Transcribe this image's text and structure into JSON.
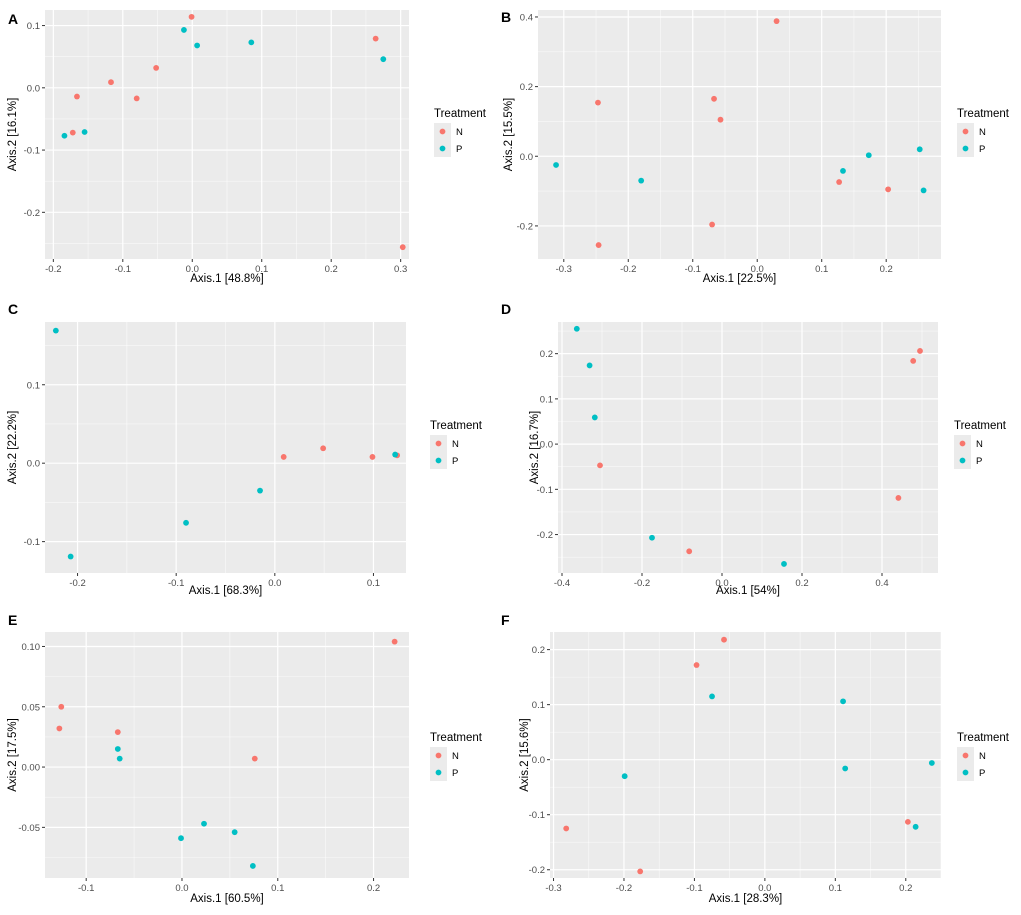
{
  "colors": {
    "N": "#F8766D",
    "P": "#00BFC4",
    "panel_bg": "#EBEBEB",
    "grid_major": "#FFFFFF"
  },
  "chart_data": [
    {
      "panel": "A",
      "type": "scatter",
      "xlabel": "Axis.1   [48.8%]",
      "ylabel": "Axis.2   [16.1%]",
      "xlim": [
        -0.212,
        0.312
      ],
      "ylim": [
        -0.275,
        0.125
      ],
      "xticks": [
        -0.2,
        -0.1,
        0.0,
        0.1,
        0.2,
        0.3
      ],
      "xtick_labels": [
        "-0.2",
        "-0.1",
        "0.0",
        "0.1",
        "0.2",
        "0.3"
      ],
      "yticks": [
        -0.2,
        -0.1,
        0.0,
        0.1
      ],
      "ytick_labels": [
        "-0.2",
        "-0.1",
        "0.0",
        "0.1"
      ],
      "legend_title": "Treatment",
      "legend": [
        {
          "key": "N",
          "label": "N"
        },
        {
          "key": "P",
          "label": "P"
        }
      ],
      "series": [
        {
          "name": "N",
          "points": [
            [
              -0.001,
              0.114
            ],
            [
              -0.052,
              0.032
            ],
            [
              -0.117,
              0.009
            ],
            [
              -0.08,
              -0.017
            ],
            [
              -0.166,
              -0.014
            ],
            [
              -0.172,
              -0.072
            ],
            [
              0.264,
              0.079
            ],
            [
              0.303,
              -0.256
            ]
          ]
        },
        {
          "name": "P",
          "points": [
            [
              -0.012,
              0.093
            ],
            [
              0.007,
              0.068
            ],
            [
              0.085,
              0.073
            ],
            [
              0.275,
              0.046
            ],
            [
              -0.184,
              -0.077
            ],
            [
              -0.155,
              -0.071
            ]
          ]
        }
      ]
    },
    {
      "panel": "B",
      "type": "scatter",
      "xlabel": "Axis.1   [22.5%]",
      "ylabel": "Axis.2   [15.5%]",
      "xlim": [
        -0.34,
        0.285
      ],
      "ylim": [
        -0.295,
        0.42
      ],
      "xticks": [
        -0.3,
        -0.2,
        -0.1,
        0.0,
        0.1,
        0.2
      ],
      "xtick_labels": [
        "-0.3",
        "-0.2",
        "-0.1",
        "0.0",
        "0.1",
        "0.2"
      ],
      "yticks": [
        -0.2,
        0.0,
        0.2,
        0.4
      ],
      "ytick_labels": [
        "-0.2",
        "0.0",
        "0.2",
        "0.4"
      ],
      "legend_title": "Treatment",
      "legend": [
        {
          "key": "N",
          "label": "N"
        },
        {
          "key": "P",
          "label": "P"
        }
      ],
      "series": [
        {
          "name": "N",
          "points": [
            [
              0.03,
              0.388
            ],
            [
              -0.247,
              0.154
            ],
            [
              -0.067,
              0.165
            ],
            [
              -0.057,
              0.105
            ],
            [
              0.127,
              -0.074
            ],
            [
              0.203,
              -0.095
            ],
            [
              -0.07,
              -0.196
            ],
            [
              -0.246,
              -0.255
            ]
          ]
        },
        {
          "name": "P",
          "points": [
            [
              -0.312,
              -0.025
            ],
            [
              -0.18,
              -0.07
            ],
            [
              0.133,
              -0.042
            ],
            [
              0.173,
              0.003
            ],
            [
              0.252,
              0.02
            ],
            [
              0.258,
              -0.098
            ]
          ]
        }
      ]
    },
    {
      "panel": "C",
      "type": "scatter",
      "xlabel": "Axis.1   [68.3%]",
      "ylabel": "Axis.2   [22.2%]",
      "xlim": [
        -0.233,
        0.133
      ],
      "ylim": [
        -0.14,
        0.18
      ],
      "xticks": [
        -0.2,
        -0.1,
        0.0,
        0.1
      ],
      "xtick_labels": [
        "-0.2",
        "-0.1",
        "0.0",
        "0.1"
      ],
      "yticks": [
        -0.1,
        0.0,
        0.1
      ],
      "ytick_labels": [
        "-0.1",
        "0.0",
        "0.1"
      ],
      "legend_title": "Treatment",
      "legend": [
        {
          "key": "N",
          "label": "N"
        },
        {
          "key": "P",
          "label": "P"
        }
      ],
      "series": [
        {
          "name": "N",
          "points": [
            [
              0.009,
              0.008
            ],
            [
              0.049,
              0.019
            ],
            [
              0.099,
              0.008
            ],
            [
              0.124,
              0.01
            ]
          ]
        },
        {
          "name": "P",
          "points": [
            [
              -0.222,
              0.169
            ],
            [
              -0.207,
              -0.119
            ],
            [
              -0.09,
              -0.076
            ],
            [
              -0.015,
              -0.035
            ],
            [
              0.122,
              0.011
            ]
          ]
        }
      ]
    },
    {
      "panel": "D",
      "type": "scatter",
      "xlabel": "Axis.1   [54%]",
      "ylabel": "Axis.2   [16.7%]",
      "xlim": [
        -0.41,
        0.54
      ],
      "ylim": [
        -0.285,
        0.27
      ],
      "xticks": [
        -0.4,
        -0.2,
        0.0,
        0.2,
        0.4
      ],
      "xtick_labels": [
        "-0.4",
        "-0.2",
        "0.0",
        "0.2",
        "0.4"
      ],
      "yticks": [
        -0.2,
        -0.1,
        0.0,
        0.1,
        0.2
      ],
      "ytick_labels": [
        "-0.2",
        "-0.1",
        "0.0",
        "0.1",
        "0.2"
      ],
      "legend_title": "Treatment",
      "legend": [
        {
          "key": "N",
          "label": "N"
        },
        {
          "key": "P",
          "label": "P"
        }
      ],
      "series": [
        {
          "name": "N",
          "points": [
            [
              0.495,
              0.206
            ],
            [
              0.478,
              0.184
            ],
            [
              -0.305,
              -0.047
            ],
            [
              0.441,
              -0.119
            ],
            [
              -0.082,
              -0.237
            ]
          ]
        },
        {
          "name": "P",
          "points": [
            [
              -0.363,
              0.255
            ],
            [
              -0.331,
              0.174
            ],
            [
              -0.318,
              0.059
            ],
            [
              -0.175,
              -0.207
            ],
            [
              0.155,
              -0.265
            ]
          ]
        }
      ]
    },
    {
      "panel": "E",
      "type": "scatter",
      "xlabel": "Axis.1   [60.5%]",
      "ylabel": "Axis.2   [17.5%]",
      "xlim": [
        -0.143,
        0.237
      ],
      "ylim": [
        -0.092,
        0.112
      ],
      "xticks": [
        -0.1,
        0.0,
        0.1,
        0.2
      ],
      "xtick_labels": [
        "-0.1",
        "0.0",
        "0.1",
        "0.2"
      ],
      "yticks": [
        -0.05,
        0.0,
        0.05,
        0.1
      ],
      "ytick_labels": [
        "-0.05",
        "0.00",
        "0.05",
        "0.10"
      ],
      "legend_title": "Treatment",
      "legend": [
        {
          "key": "N",
          "label": "N"
        },
        {
          "key": "P",
          "label": "P"
        }
      ],
      "series": [
        {
          "name": "N",
          "points": [
            [
              0.222,
              0.104
            ],
            [
              -0.126,
              0.05
            ],
            [
              -0.128,
              0.032
            ],
            [
              -0.067,
              0.029
            ],
            [
              0.076,
              0.007
            ]
          ]
        },
        {
          "name": "P",
          "points": [
            [
              -0.067,
              0.015
            ],
            [
              -0.065,
              0.007
            ],
            [
              -0.001,
              -0.059
            ],
            [
              0.023,
              -0.047
            ],
            [
              0.055,
              -0.054
            ],
            [
              0.074,
              -0.082
            ]
          ]
        }
      ]
    },
    {
      "panel": "F",
      "type": "scatter",
      "xlabel": "Axis.1   [28.3%]",
      "ylabel": "Axis.2   [15.6%]",
      "xlim": [
        -0.305,
        0.25
      ],
      "ylim": [
        -0.215,
        0.232
      ],
      "xticks": [
        -0.3,
        -0.2,
        -0.1,
        0.0,
        0.1,
        0.2
      ],
      "xtick_labels": [
        "-0.3",
        "-0.2",
        "-0.1",
        "0.0",
        "0.1",
        "0.2"
      ],
      "yticks": [
        -0.2,
        -0.1,
        0.0,
        0.1,
        0.2
      ],
      "ytick_labels": [
        "-0.2",
        "-0.1",
        "0.0",
        "0.1",
        "0.2"
      ],
      "legend_title": "Treatment",
      "legend": [
        {
          "key": "N",
          "label": "N"
        },
        {
          "key": "P",
          "label": "P"
        }
      ],
      "series": [
        {
          "name": "N",
          "points": [
            [
              -0.058,
              0.218
            ],
            [
              -0.097,
              0.172
            ],
            [
              -0.282,
              -0.125
            ],
            [
              -0.177,
              -0.203
            ],
            [
              0.203,
              -0.113
            ]
          ]
        },
        {
          "name": "P",
          "points": [
            [
              -0.075,
              0.115
            ],
            [
              0.111,
              0.106
            ],
            [
              -0.199,
              -0.03
            ],
            [
              0.114,
              -0.016
            ],
            [
              0.237,
              -0.006
            ],
            [
              0.214,
              -0.122
            ]
          ]
        }
      ]
    }
  ]
}
